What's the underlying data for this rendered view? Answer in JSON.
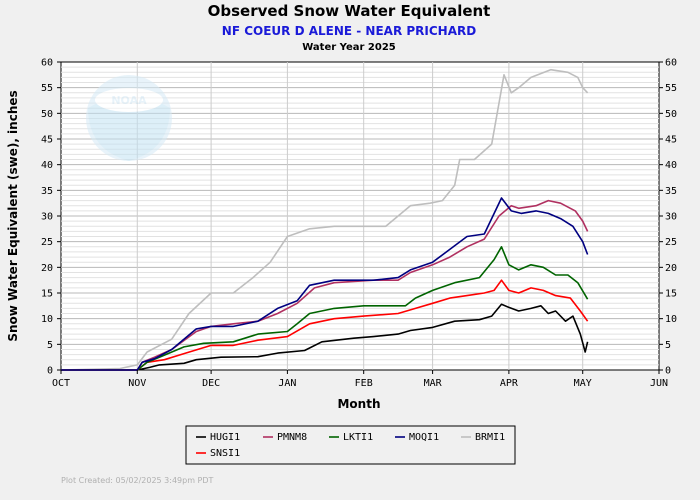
{
  "header": {
    "title": "Observed Snow Water Equivalent",
    "subtitle": "NF COEUR D ALENE - NEAR PRICHARD",
    "period": "Water Year 2025"
  },
  "footer": {
    "plot_created": "Plot Created: 05/02/2025 3:49pm PDT"
  },
  "logo": {
    "text": "NOAA"
  },
  "colors": {
    "background": "#f0f0f0",
    "subtitle": "#1a1ad8",
    "grid": "#c8c8c8",
    "footer": "#b0b0b0"
  },
  "chart_data": {
    "type": "line",
    "xlabel": "Month",
    "ylabel": "Snow Water Equivalent (swe),  inches",
    "x_ticks": [
      "OCT",
      "NOV",
      "DEC",
      "JAN",
      "FEB",
      "MAR",
      "APR",
      "MAY",
      "JUN"
    ],
    "x_range": [
      "2024-10-01",
      "2025-06-01"
    ],
    "ylim": [
      0,
      60
    ],
    "y_ticks": [
      0,
      5,
      10,
      15,
      20,
      25,
      30,
      35,
      40,
      45,
      50,
      55,
      60
    ],
    "grid": true,
    "legend_position": "bottom",
    "series": [
      {
        "name": "HUGI1",
        "color": "#000000",
        "points": [
          [
            "2024-10-01",
            0
          ],
          [
            "2024-11-01",
            0
          ],
          [
            "2024-11-06",
            0.5
          ],
          [
            "2024-11-10",
            1
          ],
          [
            "2024-11-20",
            1.3
          ],
          [
            "2024-11-25",
            2
          ],
          [
            "2024-12-05",
            2.5
          ],
          [
            "2024-12-20",
            2.6
          ],
          [
            "2024-12-28",
            3.3
          ],
          [
            "2025-01-08",
            3.8
          ],
          [
            "2025-01-15",
            5.5
          ],
          [
            "2025-01-28",
            6.2
          ],
          [
            "2025-02-05",
            6.5
          ],
          [
            "2025-02-15",
            7
          ],
          [
            "2025-02-20",
            7.7
          ],
          [
            "2025-03-01",
            8.3
          ],
          [
            "2025-03-10",
            9.5
          ],
          [
            "2025-03-20",
            9.8
          ],
          [
            "2025-03-25",
            10.5
          ],
          [
            "2025-03-29",
            12.8
          ],
          [
            "2025-04-01",
            12.2
          ],
          [
            "2025-04-05",
            11.5
          ],
          [
            "2025-04-10",
            12
          ],
          [
            "2025-04-14",
            12.5
          ],
          [
            "2025-04-17",
            11
          ],
          [
            "2025-04-20",
            11.5
          ],
          [
            "2025-04-24",
            9.5
          ],
          [
            "2025-04-27",
            10.5
          ],
          [
            "2025-04-30",
            7
          ],
          [
            "2025-05-02",
            3.5
          ],
          [
            "2025-05-03",
            5.5
          ]
        ]
      },
      {
        "name": "PMNM8",
        "color": "#b03060",
        "points": [
          [
            "2024-10-01",
            0
          ],
          [
            "2024-11-01",
            0
          ],
          [
            "2024-11-03",
            1.5
          ],
          [
            "2024-11-08",
            2.5
          ],
          [
            "2024-11-15",
            4
          ],
          [
            "2024-11-25",
            7.5
          ],
          [
            "2024-12-01",
            8.5
          ],
          [
            "2024-12-10",
            9
          ],
          [
            "2024-12-20",
            9.5
          ],
          [
            "2024-12-28",
            11
          ],
          [
            "2025-01-05",
            13
          ],
          [
            "2025-01-12",
            16
          ],
          [
            "2025-01-20",
            17
          ],
          [
            "2025-02-05",
            17.5
          ],
          [
            "2025-02-15",
            17.5
          ],
          [
            "2025-02-20",
            19
          ],
          [
            "2025-03-01",
            20.5
          ],
          [
            "2025-03-08",
            22
          ],
          [
            "2025-03-15",
            24
          ],
          [
            "2025-03-22",
            25.5
          ],
          [
            "2025-03-28",
            30
          ],
          [
            "2025-04-02",
            32
          ],
          [
            "2025-04-05",
            31.5
          ],
          [
            "2025-04-12",
            32
          ],
          [
            "2025-04-17",
            33
          ],
          [
            "2025-04-22",
            32.5
          ],
          [
            "2025-04-28",
            31
          ],
          [
            "2025-05-01",
            29
          ],
          [
            "2025-05-03",
            27
          ]
        ]
      },
      {
        "name": "LKTI1",
        "color": "#006400",
        "points": [
          [
            "2024-10-01",
            0
          ],
          [
            "2024-11-01",
            0
          ],
          [
            "2024-11-05",
            1.5
          ],
          [
            "2024-11-10",
            2.5
          ],
          [
            "2024-11-20",
            4.5
          ],
          [
            "2024-11-28",
            5.2
          ],
          [
            "2024-12-10",
            5.5
          ],
          [
            "2024-12-20",
            7
          ],
          [
            "2025-01-01",
            7.5
          ],
          [
            "2025-01-05",
            9
          ],
          [
            "2025-01-10",
            11
          ],
          [
            "2025-01-20",
            12
          ],
          [
            "2025-02-01",
            12.5
          ],
          [
            "2025-02-10",
            12.5
          ],
          [
            "2025-02-18",
            12.5
          ],
          [
            "2025-02-22",
            14
          ],
          [
            "2025-03-01",
            15.5
          ],
          [
            "2025-03-10",
            17
          ],
          [
            "2025-03-20",
            18
          ],
          [
            "2025-03-26",
            21.5
          ],
          [
            "2025-03-29",
            24
          ],
          [
            "2025-04-01",
            20.5
          ],
          [
            "2025-04-05",
            19.5
          ],
          [
            "2025-04-10",
            20.5
          ],
          [
            "2025-04-15",
            20
          ],
          [
            "2025-04-20",
            18.5
          ],
          [
            "2025-04-25",
            18.5
          ],
          [
            "2025-04-29",
            17
          ],
          [
            "2025-05-03",
            13.8
          ]
        ]
      },
      {
        "name": "MOQI1",
        "color": "#000080",
        "points": [
          [
            "2024-10-01",
            0
          ],
          [
            "2024-11-01",
            0
          ],
          [
            "2024-11-03",
            1.5
          ],
          [
            "2024-11-08",
            2.2
          ],
          [
            "2024-11-15",
            4
          ],
          [
            "2024-11-25",
            8
          ],
          [
            "2024-12-01",
            8.5
          ],
          [
            "2024-12-10",
            8.5
          ],
          [
            "2024-12-20",
            9.5
          ],
          [
            "2024-12-28",
            12
          ],
          [
            "2025-01-05",
            13.5
          ],
          [
            "2025-01-10",
            16.5
          ],
          [
            "2025-01-20",
            17.5
          ],
          [
            "2025-02-05",
            17.5
          ],
          [
            "2025-02-15",
            18
          ],
          [
            "2025-02-20",
            19.5
          ],
          [
            "2025-03-01",
            21
          ],
          [
            "2025-03-08",
            23.5
          ],
          [
            "2025-03-15",
            26
          ],
          [
            "2025-03-22",
            26.5
          ],
          [
            "2025-03-29",
            33.5
          ],
          [
            "2025-04-02",
            31
          ],
          [
            "2025-04-06",
            30.5
          ],
          [
            "2025-04-12",
            31
          ],
          [
            "2025-04-17",
            30.5
          ],
          [
            "2025-04-22",
            29.5
          ],
          [
            "2025-04-27",
            28
          ],
          [
            "2025-05-01",
            25
          ],
          [
            "2025-05-03",
            22.5
          ]
        ]
      },
      {
        "name": "BRMI1",
        "color": "#bebebe",
        "points": [
          [
            "2024-10-01",
            0
          ],
          [
            "2024-10-25",
            0.3
          ],
          [
            "2024-11-01",
            1
          ],
          [
            "2024-11-05",
            3.5
          ],
          [
            "2024-11-15",
            6
          ],
          [
            "2024-11-22",
            11
          ],
          [
            "2024-12-01",
            15
          ],
          [
            "2024-12-10",
            15
          ],
          [
            "2024-12-18",
            18
          ],
          [
            "2024-12-25",
            21
          ],
          [
            "2025-01-01",
            26
          ],
          [
            "2025-01-10",
            27.5
          ],
          [
            "2025-01-20",
            28
          ],
          [
            "2025-02-01",
            28
          ],
          [
            "2025-02-10",
            28
          ],
          [
            "2025-02-15",
            30
          ],
          [
            "2025-02-20",
            32
          ],
          [
            "2025-02-28",
            32.5
          ],
          [
            "2025-03-05",
            33
          ],
          [
            "2025-03-10",
            36
          ],
          [
            "2025-03-12",
            41
          ],
          [
            "2025-03-18",
            41
          ],
          [
            "2025-03-25",
            44
          ],
          [
            "2025-03-28",
            52
          ],
          [
            "2025-03-30",
            57.5
          ],
          [
            "2025-04-02",
            54
          ],
          [
            "2025-04-05",
            55
          ],
          [
            "2025-04-10",
            57
          ],
          [
            "2025-04-18",
            58.5
          ],
          [
            "2025-04-25",
            58
          ],
          [
            "2025-04-29",
            57
          ],
          [
            "2025-05-01",
            55
          ],
          [
            "2025-05-03",
            54
          ]
        ]
      },
      {
        "name": "SNSI1",
        "color": "#ff0000",
        "points": [
          [
            "2024-10-01",
            0
          ],
          [
            "2024-11-01",
            0
          ],
          [
            "2024-11-05",
            1.5
          ],
          [
            "2024-11-12",
            2
          ],
          [
            "2024-11-20",
            3.2
          ],
          [
            "2024-12-01",
            4.8
          ],
          [
            "2024-12-10",
            4.8
          ],
          [
            "2024-12-20",
            5.8
          ],
          [
            "2025-01-01",
            6.5
          ],
          [
            "2025-01-10",
            9
          ],
          [
            "2025-01-20",
            10
          ],
          [
            "2025-02-01",
            10.5
          ],
          [
            "2025-02-15",
            11
          ],
          [
            "2025-02-22",
            12
          ],
          [
            "2025-03-01",
            13
          ],
          [
            "2025-03-08",
            14
          ],
          [
            "2025-03-15",
            14.5
          ],
          [
            "2025-03-22",
            15
          ],
          [
            "2025-03-26",
            15.5
          ],
          [
            "2025-03-29",
            17.5
          ],
          [
            "2025-04-01",
            15.5
          ],
          [
            "2025-04-05",
            15
          ],
          [
            "2025-04-10",
            16
          ],
          [
            "2025-04-15",
            15.5
          ],
          [
            "2025-04-20",
            14.5
          ],
          [
            "2025-04-26",
            14
          ],
          [
            "2025-04-30",
            11.5
          ],
          [
            "2025-05-03",
            9.5
          ]
        ]
      }
    ]
  }
}
